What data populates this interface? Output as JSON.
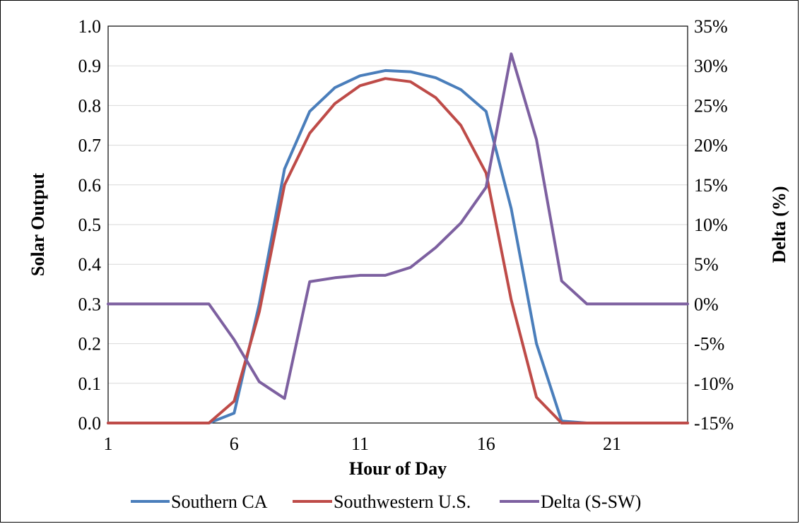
{
  "chart_data": {
    "type": "line",
    "xlabel": "Hour of Day",
    "ylabel": "Solar Output",
    "y2label": "Delta (%)",
    "x": [
      1,
      2,
      3,
      4,
      5,
      6,
      7,
      8,
      9,
      10,
      11,
      12,
      13,
      14,
      15,
      16,
      17,
      18,
      19,
      20,
      21,
      22,
      23,
      24
    ],
    "xticks": [
      1,
      6,
      11,
      16,
      21
    ],
    "xlim": [
      1,
      24
    ],
    "ylim": [
      0,
      1.0
    ],
    "yticks": [
      "0.0",
      "0.1",
      "0.2",
      "0.3",
      "0.4",
      "0.5",
      "0.6",
      "0.7",
      "0.8",
      "0.9",
      "1.0"
    ],
    "y2lim": [
      -15,
      35
    ],
    "y2ticks": [
      "-15%",
      "-10%",
      "-5%",
      "0%",
      "5%",
      "10%",
      "15%",
      "20%",
      "25%",
      "30%",
      "35%"
    ],
    "grid": true,
    "legend_position": "bottom",
    "series": [
      {
        "name": "Southern CA",
        "axis": "left",
        "color": "#4a7ebb",
        "values": [
          0,
          0,
          0,
          0,
          0,
          0.025,
          0.3,
          0.64,
          0.785,
          0.845,
          0.875,
          0.888,
          0.885,
          0.87,
          0.84,
          0.785,
          0.54,
          0.2,
          0.005,
          0,
          0,
          0,
          0,
          0
        ]
      },
      {
        "name": "Southwestern U.S.",
        "axis": "left",
        "color": "#be4b48",
        "values": [
          0,
          0,
          0,
          0,
          0,
          0.055,
          0.28,
          0.6,
          0.73,
          0.805,
          0.85,
          0.868,
          0.86,
          0.82,
          0.75,
          0.63,
          0.31,
          0.065,
          0,
          0,
          0,
          0,
          0,
          0
        ]
      },
      {
        "name": "Delta (S-SW)",
        "axis": "right",
        "color": "#7d60a0",
        "values": [
          0,
          0,
          0,
          0,
          0,
          -4.5,
          -9.8,
          -11.9,
          2.8,
          3.3,
          3.6,
          3.6,
          4.6,
          7.1,
          10.2,
          14.7,
          31.5,
          20.7,
          2.9,
          0,
          0,
          0,
          0,
          0
        ]
      }
    ]
  }
}
